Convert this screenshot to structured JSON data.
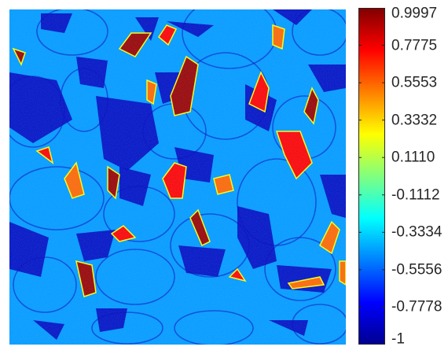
{
  "chart_data": {
    "type": "heatmap",
    "title": "",
    "xlabel": "",
    "ylabel": "",
    "colormap": "jet",
    "colorbar": {
      "min": -1,
      "max": 0.9997,
      "tick_labels": [
        "0.9997",
        "0.7775",
        "0.5553",
        "0.3332",
        "0.1110",
        "-0.1112",
        "-0.3334",
        "-0.5556",
        "-0.7778",
        "-1"
      ],
      "tick_values": [
        0.9997,
        0.7775,
        0.5553,
        0.3332,
        0.111,
        -0.1112,
        -0.3334,
        -0.5556,
        -0.7778,
        -1
      ]
    },
    "background_value": -0.45,
    "pore_value": -0.9,
    "axes_visible": false,
    "grid": false
  },
  "colors": {
    "background": "#ffffff",
    "text": "#262626"
  }
}
